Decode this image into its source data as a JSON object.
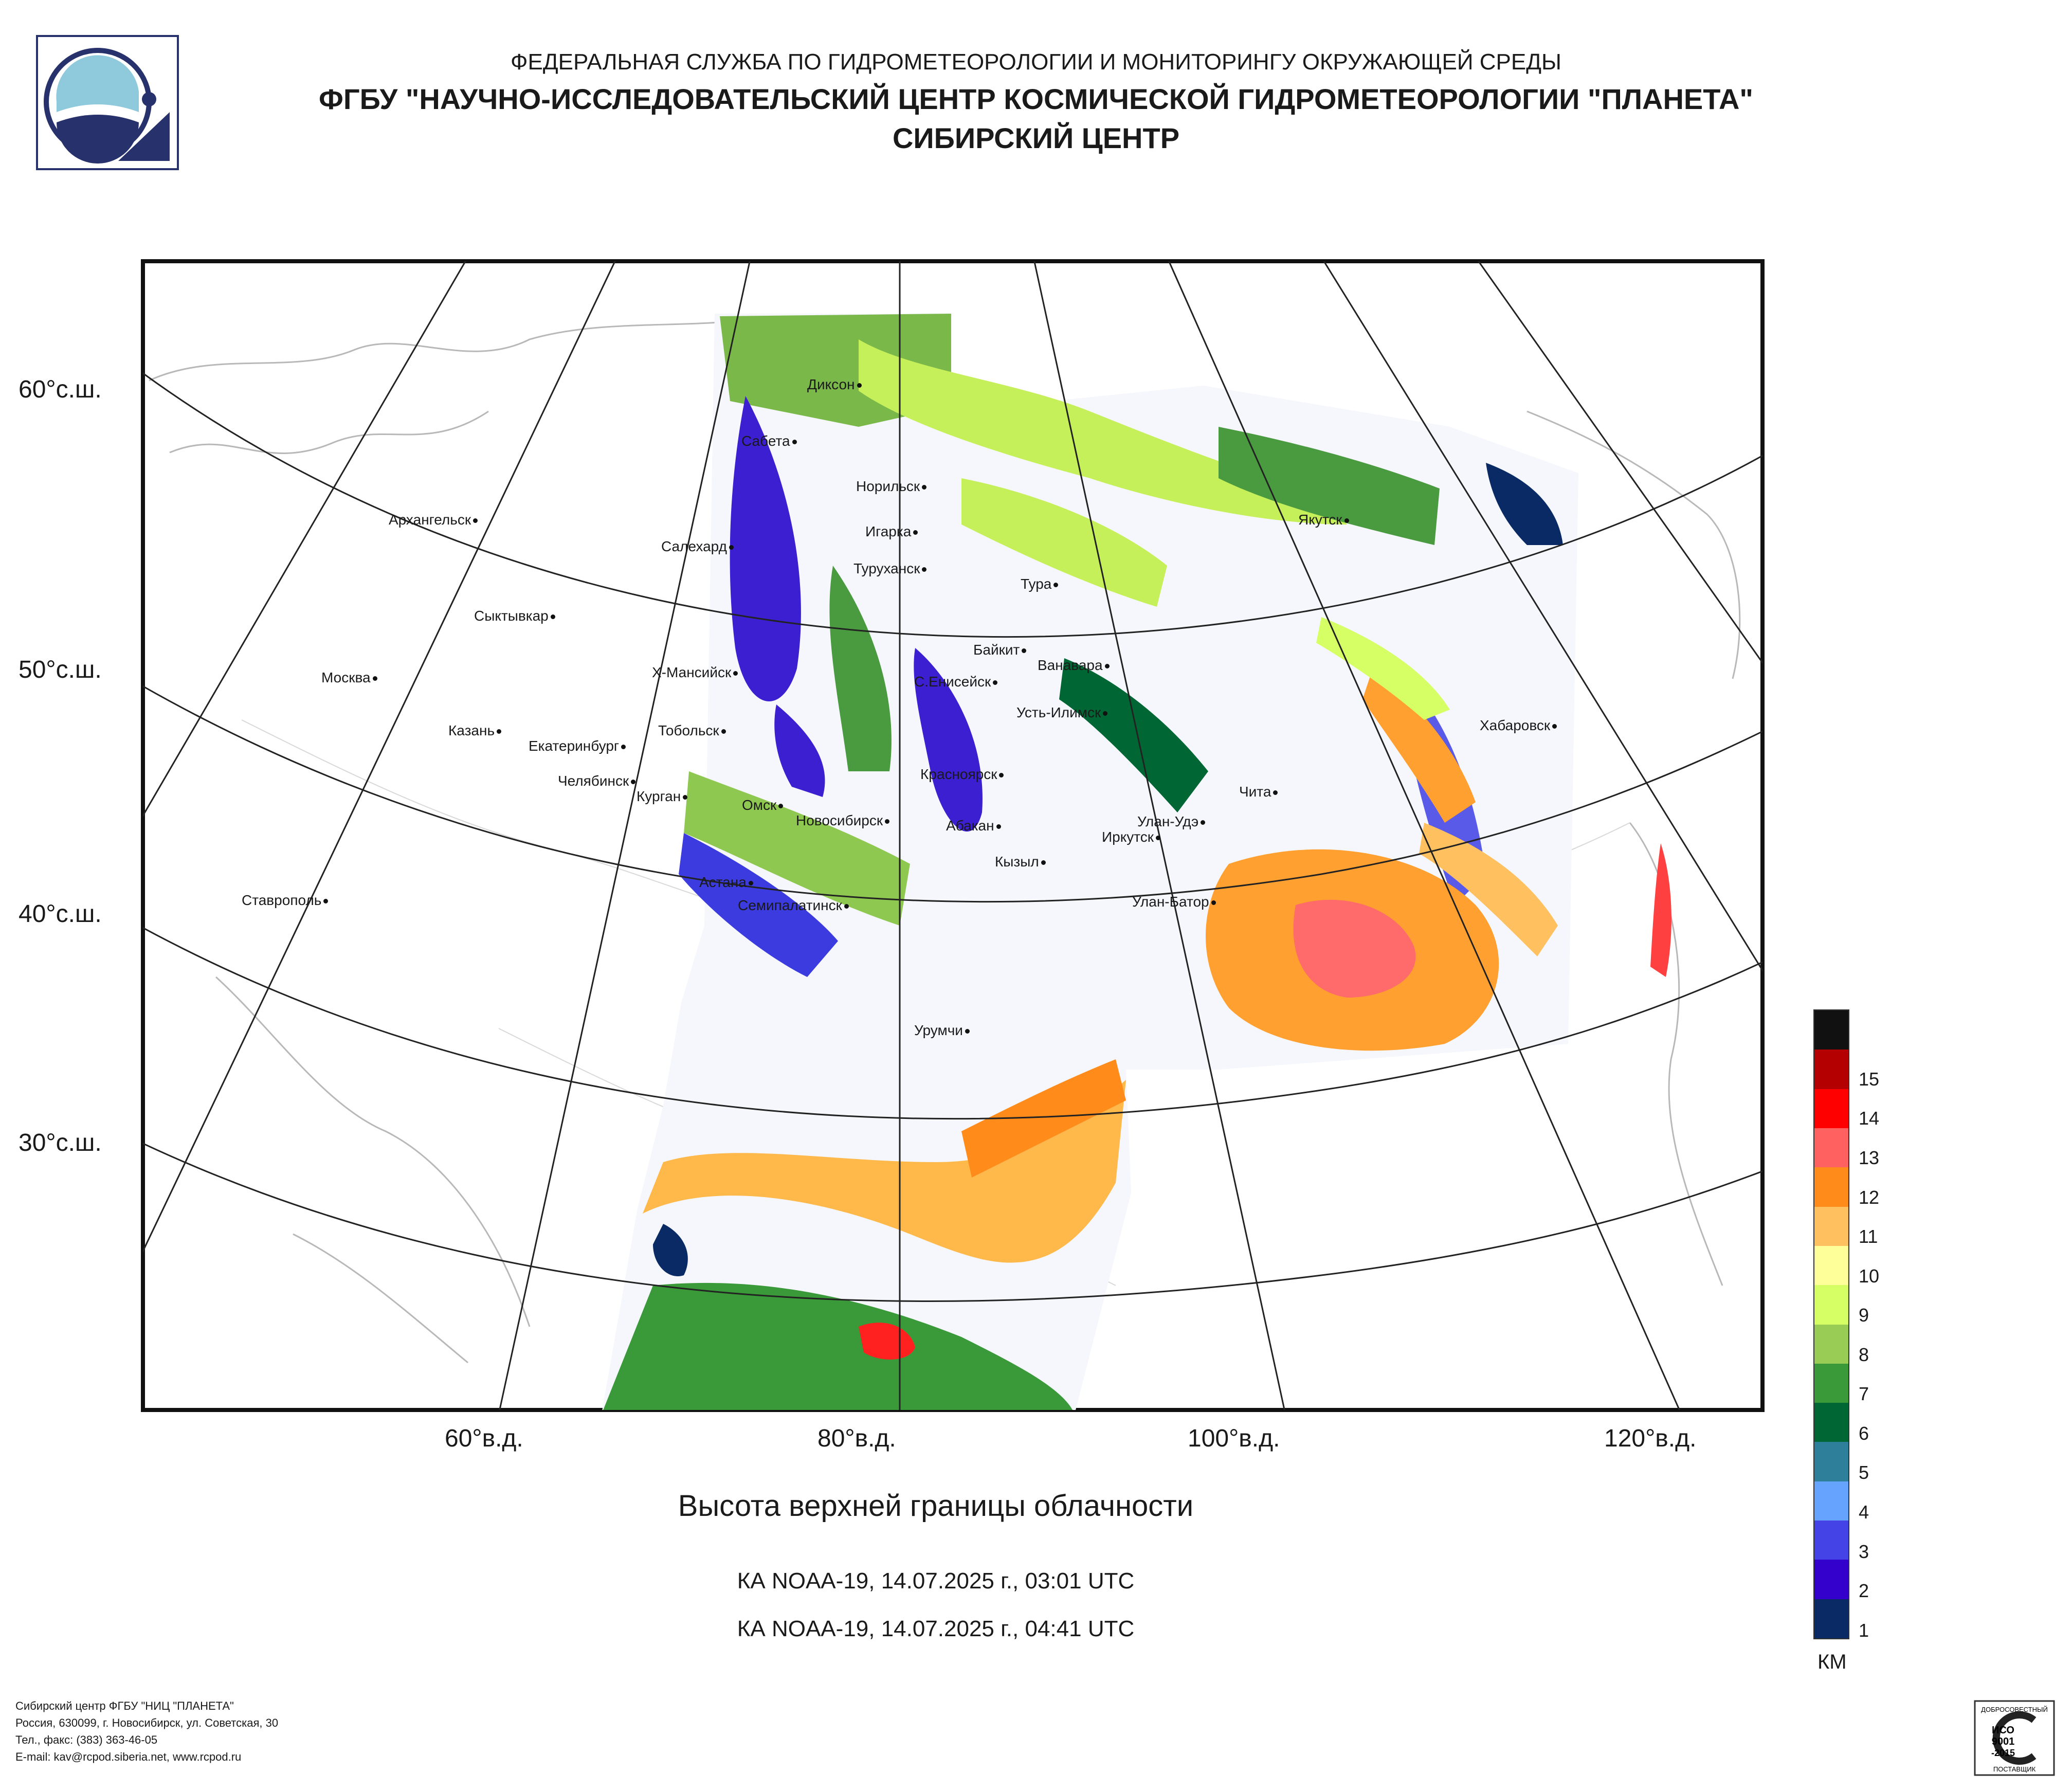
{
  "header": {
    "agency": "ФЕДЕРАЛЬНАЯ СЛУЖБА ПО ГИДРОМЕТЕОРОЛОГИИ И МОНИТОРИНГУ ОКРУЖАЮЩЕЙ СРЕДЫ",
    "organization": "ФГБУ \"НАУЧНО-ИССЛЕДОВАТЕЛЬСКИЙ ЦЕНТР КОСМИЧЕСКОЙ ГИДРОМЕТЕОРОЛОГИИ \"ПЛАНЕТА\"",
    "center": "СИБИРСКИЙ ЦЕНТР"
  },
  "logo": {
    "icon": "planeta-logo-icon",
    "primary_color": "#27316b",
    "secondary_color": "#8ec9dc"
  },
  "map": {
    "latitude_labels": [
      "60°с.ш.",
      "50°с.ш.",
      "40°с.ш.",
      "30°с.ш."
    ],
    "longitude_labels": [
      "60°в.д.",
      "80°в.д.",
      "100°в.д.",
      "120°в.д."
    ],
    "cities": [
      "Диксон",
      "Сабета",
      "Норильск",
      "Архангельск",
      "Салехард",
      "Игарка",
      "Якутск",
      "Туруханск",
      "Тура",
      "Сыктывкар",
      "Байкит",
      "Ванавара",
      "Москва",
      "Х-Мансийск",
      "С.Енисейск",
      "Усть-Илимск",
      "Хабаровск",
      "Казань",
      "Тобольск",
      "Екатеринбург",
      "Челябинск",
      "Курган",
      "Красноярск",
      "Чита",
      "Омск",
      "Новосибирск",
      "Абакан",
      "Улан-Удэ",
      "Иркутск",
      "Кызыл",
      "Астана",
      "Семипалатинск",
      "Улан-Батор",
      "Ставрополь",
      "Урумчи"
    ]
  },
  "title": "Высота верхней границы облачности",
  "passes": [
    "КА NOAA-19, 14.07.2025 г., 03:01 UTC",
    "КА NOAA-19, 14.07.2025 г., 04:41 UTC"
  ],
  "legend": {
    "unit": "КМ",
    "levels": [
      {
        "label": "",
        "color": "#111111"
      },
      {
        "label": "15",
        "color": "#b40000"
      },
      {
        "label": "14",
        "color": "#ff0000"
      },
      {
        "label": "13",
        "color": "#ff6060"
      },
      {
        "label": "12",
        "color": "#ff8c1a"
      },
      {
        "label": "11",
        "color": "#ffc060"
      },
      {
        "label": "10",
        "color": "#ffff99"
      },
      {
        "label": "9",
        "color": "#d6ff66"
      },
      {
        "label": "8",
        "color": "#99cc55"
      },
      {
        "label": "7",
        "color": "#3a9a3a"
      },
      {
        "label": "6",
        "color": "#006633"
      },
      {
        "label": "5",
        "color": "#2e7f99"
      },
      {
        "label": "4",
        "color": "#66a3ff"
      },
      {
        "label": "3",
        "color": "#4444e6"
      },
      {
        "label": "2",
        "color": "#3300cc"
      },
      {
        "label": "1",
        "color": "#0a2a66"
      }
    ]
  },
  "footer": {
    "lines": [
      "Сибирский центр ФГБУ \"НИЦ \"ПЛАНЕТА\"",
      "Россия, 630099, г. Новосибирск, ул. Советская, 30",
      "Тел., факс: (383) 363-46-05",
      "E-mail: kav@rcpod.siberia.net, www.rcpod.ru"
    ],
    "certificate": {
      "top": "ДОБРОСОВЕСТНЫЙ",
      "standard": "ИСО",
      "number": "9001",
      "year": "-2015",
      "bottom": "ПОСТАВЩИК"
    }
  }
}
